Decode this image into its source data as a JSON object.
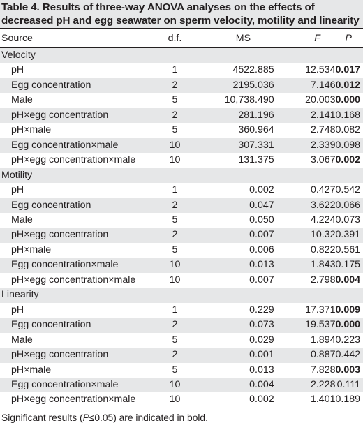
{
  "table": {
    "title": "Table 4. Results of three-way ANOVA analyses on the effects of decreased pH and egg seawater on sperm velocity, motility and linearity",
    "headers": {
      "source": "Source",
      "df": "d.f.",
      "ms": "MS",
      "f": "F",
      "p": "P"
    },
    "groups": [
      {
        "name": "Velocity",
        "rows": [
          {
            "source": "pH",
            "df": "1",
            "ms": "4522.885",
            "f": "12.534",
            "p": "0.017",
            "sig": true
          },
          {
            "source": "Egg concentration",
            "df": "2",
            "ms": "2195.036",
            "f": "7.146",
            "p": "0.012",
            "sig": true
          },
          {
            "source": "Male",
            "df": "5",
            "ms": "10,738.490",
            "f": "20.003",
            "p": "0.000",
            "sig": true
          },
          {
            "source": "pH×egg concentration",
            "df": "2",
            "ms": "281.196",
            "f": "2.141",
            "p": "0.168",
            "sig": false
          },
          {
            "source": "pH×male",
            "df": "5",
            "ms": "360.964",
            "f": "2.748",
            "p": "0.082",
            "sig": false
          },
          {
            "source": "Egg concentration×male",
            "df": "10",
            "ms": "307.331",
            "f": "2.339",
            "p": "0.098",
            "sig": false
          },
          {
            "source": "pH×egg concentration×male",
            "df": "10",
            "ms": "131.375",
            "f": "3.067",
            "p": "0.002",
            "sig": true
          }
        ]
      },
      {
        "name": "Motility",
        "rows": [
          {
            "source": "pH",
            "df": "1",
            "ms": "0.002",
            "f": "0.427",
            "p": "0.542",
            "sig": false
          },
          {
            "source": "Egg concentration",
            "df": "2",
            "ms": "0.047",
            "f": "3.622",
            "p": "0.066",
            "sig": false
          },
          {
            "source": "Male",
            "df": "5",
            "ms": "0.050",
            "f": "4.224",
            "p": "0.073",
            "sig": false
          },
          {
            "source": "pH×egg concentration",
            "df": "2",
            "ms": "0.007",
            "f": "10.32",
            "p": "0.391",
            "sig": false
          },
          {
            "source": "pH×male",
            "df": "5",
            "ms": "0.006",
            "f": "0.822",
            "p": "0.561",
            "sig": false
          },
          {
            "source": "Egg concentration×male",
            "df": "10",
            "ms": "0.013",
            "f": "1.843",
            "p": "0.175",
            "sig": false
          },
          {
            "source": "pH×egg concentration×male",
            "df": "10",
            "ms": "0.007",
            "f": "2.798",
            "p": "0.004",
            "sig": true
          }
        ]
      },
      {
        "name": "Linearity",
        "rows": [
          {
            "source": "pH",
            "df": "1",
            "ms": "0.229",
            "f": "17.371",
            "p": "0.009",
            "sig": true
          },
          {
            "source": "Egg concentration",
            "df": "2",
            "ms": "0.073",
            "f": "19.537",
            "p": "0.000",
            "sig": true
          },
          {
            "source": "Male",
            "df": "5",
            "ms": "0.029",
            "f": "1.894",
            "p": "0.223",
            "sig": false
          },
          {
            "source": "pH×egg concentration",
            "df": "2",
            "ms": "0.001",
            "f": "0.887",
            "p": "0.442",
            "sig": false
          },
          {
            "source": "pH×male",
            "df": "5",
            "ms": "0.013",
            "f": "7.828",
            "p": "0.003",
            "sig": true
          },
          {
            "source": "Egg concentration×male",
            "df": "10",
            "ms": "0.004",
            "f": "2.228",
            "p": "0.111",
            "sig": false
          },
          {
            "source": "pH×egg concentration×male",
            "df": "10",
            "ms": "0.002",
            "f": "1.401",
            "p": "0.189",
            "sig": false
          }
        ]
      }
    ],
    "footnote": {
      "before": "Significant results (",
      "italic": "P",
      "after": "≤0.05) are indicated in bold."
    },
    "colors": {
      "stripe": "#e6e7e8",
      "text": "#231f20"
    }
  }
}
